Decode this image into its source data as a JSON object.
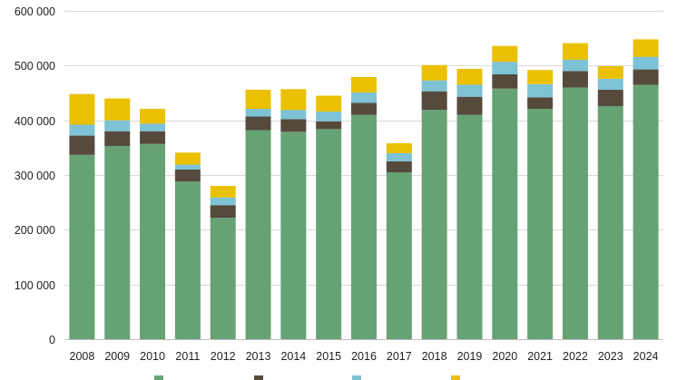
{
  "chart_data": {
    "type": "bar",
    "stacked": true,
    "title": "",
    "xlabel": "",
    "ylabel": "",
    "ylim": [
      0,
      600000
    ],
    "yticks": [
      0,
      100000,
      200000,
      300000,
      400000,
      500000,
      600000
    ],
    "ytick_labels": [
      "0",
      "100 000",
      "200 000",
      "300 000",
      "400 000",
      "500 000",
      "600 000"
    ],
    "grid": true,
    "legend_position": "bottom",
    "categories": [
      "2008",
      "2009",
      "2010",
      "2011",
      "2012",
      "2013",
      "2014",
      "2015",
      "2016",
      "2017",
      "2018",
      "2019",
      "2020",
      "2021",
      "2022",
      "2023",
      "2024"
    ],
    "series": [
      {
        "name": "",
        "color": "#67a275",
        "values": [
          337000,
          353000,
          357000,
          288000,
          222000,
          382000,
          379000,
          384000,
          410000,
          305000,
          419000,
          410000,
          458000,
          421000,
          460000,
          426000,
          465000
        ]
      },
      {
        "name": "",
        "color": "#554a3c",
        "values": [
          35000,
          27000,
          23000,
          22000,
          23000,
          25000,
          23000,
          14000,
          22000,
          20000,
          34000,
          33000,
          26000,
          21000,
          30000,
          30000,
          28000
        ]
      },
      {
        "name": "",
        "color": "#7dc2d5",
        "values": [
          20000,
          20000,
          14000,
          9000,
          14000,
          14000,
          17000,
          18000,
          19000,
          15000,
          20000,
          22000,
          23000,
          24000,
          21000,
          20000,
          23000
        ]
      },
      {
        "name": "",
        "color": "#eac000",
        "values": [
          56000,
          40000,
          27000,
          22000,
          21000,
          35000,
          38000,
          29000,
          28000,
          18000,
          28000,
          29000,
          29000,
          26000,
          30000,
          23000,
          32000
        ]
      }
    ]
  }
}
